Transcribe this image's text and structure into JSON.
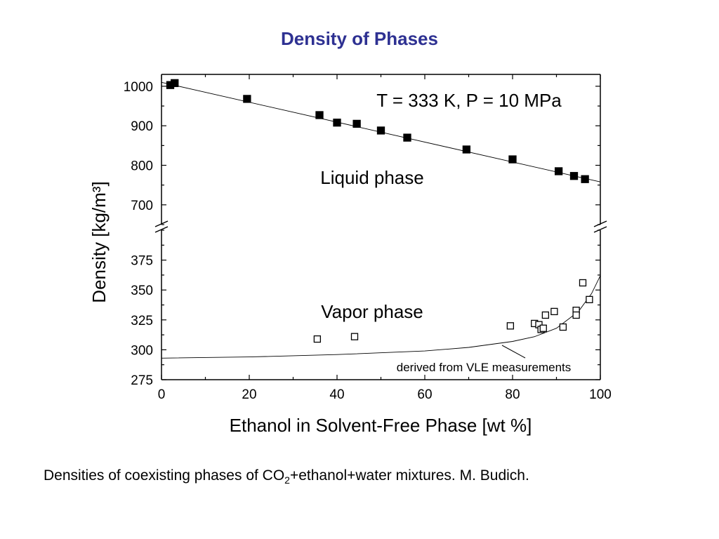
{
  "slide": {
    "title": "Density of Phases",
    "caption_before": "Densities of coexisting phases of CO",
    "caption_sub": "2",
    "caption_after": "+ethanol+water mixtures. M. Budich."
  },
  "chart_data": {
    "type": "scatter",
    "xlabel": "Ethanol in Solvent-Free Phase [wt %]",
    "ylabel": "Density [kg/m³]",
    "xlim": [
      0,
      100
    ],
    "x_ticks": [
      0,
      20,
      40,
      60,
      80,
      100
    ],
    "broken_y_axis": true,
    "upper_panel": {
      "ylim": [
        650,
        1030
      ],
      "y_ticks": [
        700,
        800,
        900,
        1000
      ]
    },
    "lower_panel": {
      "ylim": [
        275,
        400
      ],
      "y_ticks": [
        275,
        300,
        325,
        350,
        375
      ]
    },
    "annotations": {
      "conditions": "T = 333 K, P = 10 MPa",
      "liquid_label": "Liquid phase",
      "vapor_label": "Vapor phase",
      "fit_label": "derived from VLE measurements"
    },
    "series": [
      {
        "name": "Liquid phase",
        "marker": "filled-square",
        "points": [
          [
            2,
            1003
          ],
          [
            3,
            1008
          ],
          [
            19.5,
            968
          ],
          [
            36,
            927
          ],
          [
            40,
            908
          ],
          [
            44.5,
            905
          ],
          [
            50,
            888
          ],
          [
            56,
            870
          ],
          [
            69.5,
            840
          ],
          [
            80,
            815
          ],
          [
            90.5,
            785
          ],
          [
            94,
            773
          ],
          [
            96.5,
            765
          ]
        ]
      },
      {
        "name": "Vapor phase",
        "marker": "open-square",
        "points": [
          [
            35.5,
            309
          ],
          [
            44,
            311
          ],
          [
            79.5,
            320
          ],
          [
            85,
            322
          ],
          [
            86,
            321
          ],
          [
            86.5,
            317
          ],
          [
            87,
            318
          ],
          [
            87.5,
            329
          ],
          [
            89.5,
            332
          ],
          [
            91.5,
            319
          ],
          [
            94.5,
            333
          ],
          [
            94.5,
            329
          ],
          [
            96,
            356
          ],
          [
            97.5,
            342
          ]
        ]
      }
    ],
    "fit_lines": [
      {
        "name": "Liquid fit",
        "points": [
          [
            0,
            1010
          ],
          [
            100,
            758
          ]
        ]
      },
      {
        "name": "derived from VLE measurements",
        "points": [
          [
            0,
            293
          ],
          [
            20,
            294
          ],
          [
            40,
            296
          ],
          [
            60,
            299
          ],
          [
            70,
            302
          ],
          [
            80,
            307
          ],
          [
            85,
            311
          ],
          [
            90,
            318
          ],
          [
            95,
            332
          ],
          [
            98,
            347
          ],
          [
            100,
            362
          ]
        ]
      }
    ]
  }
}
